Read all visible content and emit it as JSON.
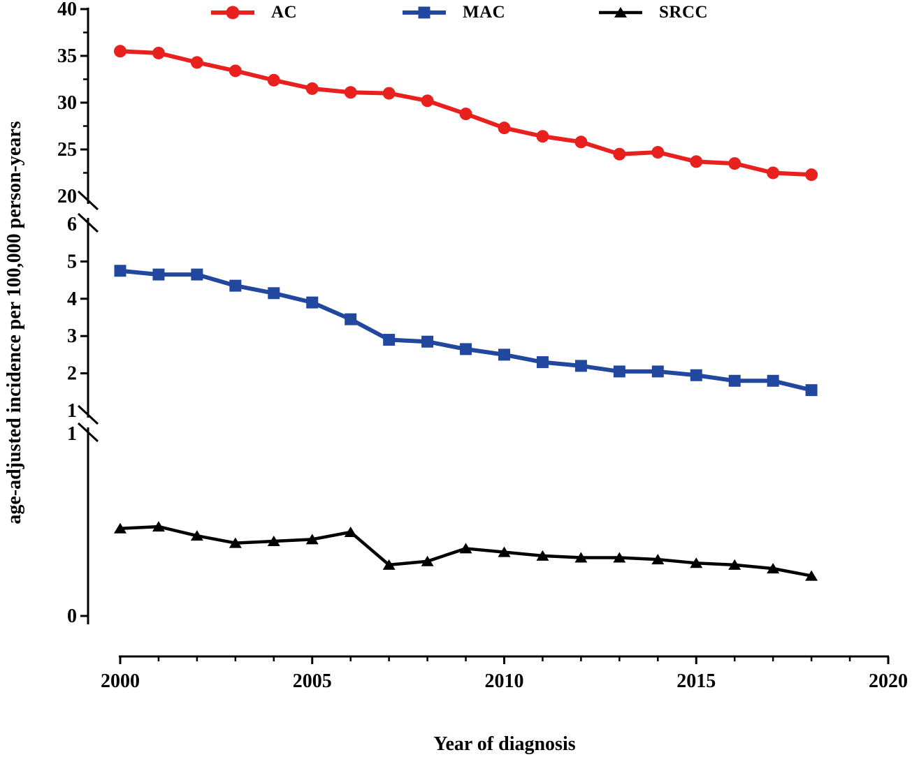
{
  "figure": {
    "y_axis_title": "age-adjusted incidence per 100,000 person-years",
    "x_axis_title": "Year of diagnosis"
  },
  "legend": {
    "items": [
      {
        "label": "AC",
        "color": "#e8201e",
        "marker": "circle"
      },
      {
        "label": "MAC",
        "color": "#21479e",
        "marker": "square"
      },
      {
        "label": "SRCC",
        "color": "#000000",
        "marker": "triangle"
      }
    ]
  },
  "chart_data": {
    "type": "line",
    "title": "",
    "xlabel": "Year of diagnosis",
    "ylabel": "age-adjusted incidence per 100,000 person-years",
    "x": [
      2000,
      2001,
      2002,
      2003,
      2004,
      2005,
      2006,
      2007,
      2008,
      2009,
      2010,
      2011,
      2012,
      2013,
      2014,
      2015,
      2016,
      2017,
      2018
    ],
    "x_axis": {
      "range": [
        2000,
        2020
      ],
      "major_ticks": [
        2000,
        2005,
        2010,
        2015,
        2020
      ],
      "minor_tick_interval": 1
    },
    "y_axis_broken": true,
    "y_segments": [
      {
        "range": [
          20,
          40
        ],
        "tick_labels": [
          40,
          35,
          30,
          25,
          20
        ],
        "ticks": [
          40,
          35,
          30,
          25
        ],
        "minor_ticks": [
          37.5,
          32.5,
          27.5,
          22.5
        ],
        "breaks": [
          "bottom"
        ]
      },
      {
        "range": [
          1,
          6
        ],
        "tick_labels": [
          6,
          5,
          4,
          3,
          2,
          1
        ],
        "ticks": [
          5,
          4,
          3,
          2
        ],
        "minor_ticks": [],
        "breaks": [
          "top",
          "bottom"
        ]
      },
      {
        "range": [
          0,
          1
        ],
        "tick_labels": [
          1,
          0
        ],
        "ticks": [
          0
        ],
        "minor_ticks": [],
        "breaks": [
          "top"
        ]
      }
    ],
    "grid": false,
    "legend_position": "top",
    "series": [
      {
        "name": "AC",
        "marker": "circle",
        "color": "#e8201e",
        "segment": 0,
        "line_width": 6,
        "values": [
          35.5,
          35.3,
          34.3,
          33.4,
          32.4,
          31.5,
          31.1,
          31.0,
          30.2,
          28.8,
          27.3,
          26.4,
          25.8,
          24.5,
          24.7,
          23.7,
          23.5,
          22.5,
          22.3
        ]
      },
      {
        "name": "MAC",
        "marker": "square",
        "color": "#21479e",
        "segment": 1,
        "line_width": 6,
        "values": [
          4.75,
          4.65,
          4.65,
          4.35,
          4.15,
          3.9,
          3.45,
          2.9,
          2.85,
          2.65,
          2.5,
          2.3,
          2.2,
          2.05,
          2.05,
          1.95,
          1.8,
          1.8,
          1.55
        ]
      },
      {
        "name": "SRCC",
        "marker": "triangle",
        "color": "#000000",
        "segment": 2,
        "line_width": 4.5,
        "values": [
          0.48,
          0.49,
          0.44,
          0.4,
          0.41,
          0.42,
          0.46,
          0.28,
          0.3,
          0.37,
          0.35,
          0.33,
          0.32,
          0.32,
          0.31,
          0.29,
          0.28,
          0.26,
          0.22
        ]
      }
    ]
  }
}
